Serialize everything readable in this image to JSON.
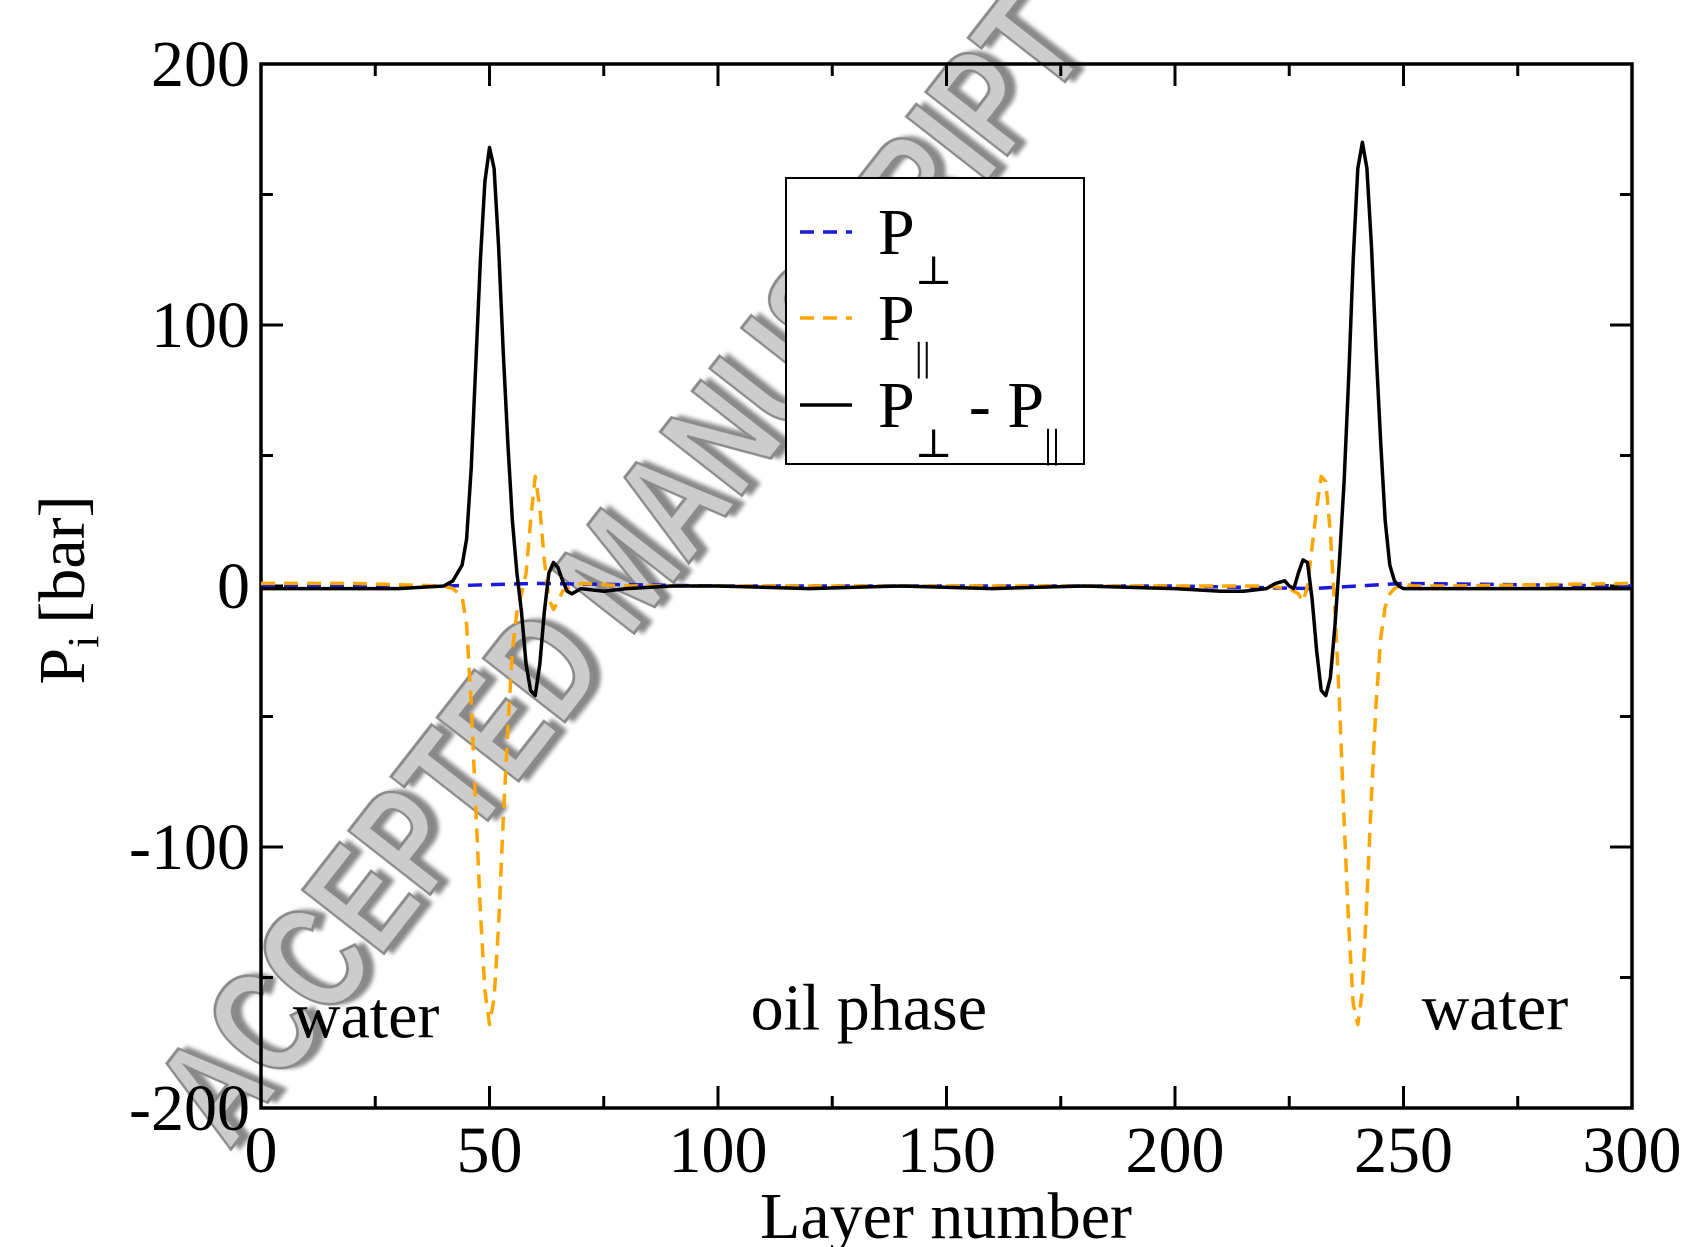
{
  "chart_data": {
    "type": "line",
    "title": "",
    "xlabel": "Layer number",
    "ylabel": "P",
    "ylabel_subscript": "i",
    "ylabel_unit": "[bar]",
    "xlim": [
      0,
      300
    ],
    "ylim": [
      -200,
      200
    ],
    "x_ticks": [
      0,
      50,
      100,
      150,
      200,
      250,
      300
    ],
    "x_tick_labels": [
      "0",
      "50",
      "100",
      "150",
      "200",
      "250",
      "300"
    ],
    "y_ticks": [
      -200,
      -100,
      0,
      100,
      200
    ],
    "y_tick_labels": [
      "-200",
      "-100",
      "0",
      "100",
      "200"
    ],
    "grid": false,
    "legend_position": "top-center",
    "legend": [
      {
        "base": "P",
        "sub": "⊥",
        "sub2": "",
        "color": "#1a1adb",
        "dash": "dashed"
      },
      {
        "base": "P",
        "sub": "||",
        "sub2": "",
        "color": "#ffa500",
        "dash": "dashed"
      },
      {
        "base": "P",
        "sub": "⊥",
        "mid": " - P",
        "sub2": "||",
        "color": "#000000",
        "dash": "solid"
      }
    ],
    "annotations": [
      {
        "text": "water",
        "x": 23,
        "y": -173
      },
      {
        "text": "oil phase",
        "x": 133,
        "y": -170
      },
      {
        "text": "water",
        "x": 270,
        "y": -170
      }
    ],
    "series": [
      {
        "key": "p_perp",
        "color": "#1a1adb",
        "dash": "dashed",
        "x": [
          0,
          40,
          60,
          100,
          150,
          200,
          230,
          240,
          250,
          300
        ],
        "y": [
          0,
          0,
          1,
          0,
          0,
          0,
          -1,
          0,
          1,
          0
        ]
      },
      {
        "key": "p_par",
        "color": "#ffa500",
        "dash": "dashed",
        "x": [
          0,
          20,
          40,
          42,
          44,
          45,
          46,
          47,
          48,
          49,
          50,
          51,
          52,
          53,
          54,
          55,
          56,
          57,
          58,
          59,
          60,
          61,
          62,
          63,
          64,
          65,
          66,
          68,
          70,
          80,
          100,
          150,
          200,
          220,
          225,
          227,
          228,
          229,
          230,
          231,
          232,
          233,
          234,
          235,
          236,
          237,
          238,
          239,
          240,
          241,
          242,
          243,
          244,
          245,
          246,
          247,
          248,
          249,
          250,
          252,
          255,
          260,
          300
        ],
        "y": [
          1,
          1,
          0,
          -1,
          -4,
          -15,
          -45,
          -85,
          -125,
          -155,
          -168,
          -158,
          -130,
          -90,
          -55,
          -25,
          -10,
          -3,
          5,
          25,
          42,
          30,
          10,
          -5,
          -9,
          -6,
          -2,
          0,
          1,
          0,
          0,
          0,
          0,
          0,
          -1,
          -3,
          -6,
          0,
          15,
          30,
          42,
          40,
          20,
          -10,
          -45,
          -90,
          -130,
          -160,
          -168,
          -155,
          -120,
          -80,
          -45,
          -20,
          -8,
          -3,
          -1,
          0,
          1,
          0,
          0,
          0,
          1
        ]
      },
      {
        "key": "p_diff",
        "color": "#000000",
        "dash": "solid",
        "x": [
          0,
          10,
          20,
          30,
          40,
          42,
          44,
          45,
          46,
          47,
          48,
          49,
          50,
          51,
          52,
          53,
          54,
          55,
          56,
          57,
          58,
          59,
          60,
          61,
          62,
          63,
          64,
          65,
          66,
          67,
          68,
          70,
          75,
          80,
          90,
          100,
          120,
          140,
          160,
          180,
          200,
          210,
          215,
          220,
          222,
          224,
          225,
          226,
          227,
          228,
          229,
          230,
          231,
          232,
          233,
          234,
          235,
          236,
          237,
          238,
          239,
          240,
          241,
          242,
          243,
          244,
          245,
          246,
          247,
          248,
          249,
          250,
          252,
          255,
          260,
          270,
          280,
          290,
          300
        ],
        "y": [
          -1,
          -1,
          -1,
          -1,
          0,
          2,
          8,
          18,
          45,
          85,
          125,
          155,
          168,
          160,
          130,
          90,
          55,
          25,
          5,
          -10,
          -30,
          -40,
          -42,
          -30,
          -10,
          5,
          9,
          7,
          2,
          -2,
          -3,
          -1,
          -2,
          -1,
          0,
          0,
          -1,
          0,
          -1,
          0,
          -1,
          -2,
          -2,
          -1,
          1,
          2,
          0,
          -1,
          5,
          10,
          9,
          -5,
          -25,
          -40,
          -42,
          -35,
          -15,
          10,
          40,
          80,
          125,
          160,
          170,
          160,
          130,
          90,
          55,
          25,
          8,
          2,
          0,
          -1,
          -1,
          -1,
          -1,
          -1,
          -1,
          -1,
          -1
        ]
      }
    ]
  },
  "watermark": {
    "text": "ACCEPTED MANUSCRIPT",
    "color": "#c8c8c8"
  }
}
